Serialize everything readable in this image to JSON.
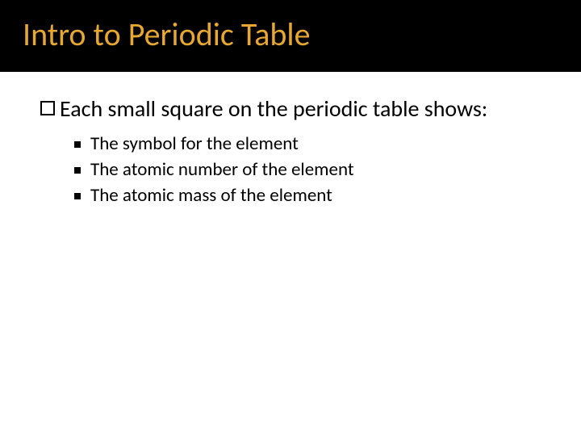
{
  "slide": {
    "title": "Intro to Periodic Table",
    "title_color": "#e7a832",
    "title_bg": "#000000",
    "main_bullet": "Each small square on the periodic table shows:",
    "sub_bullets": [
      "The symbol for the element",
      "The atomic number of the element",
      "The atomic mass of the element"
    ],
    "body_text_color": "#000000",
    "background_color": "#ffffff",
    "title_fontsize": 40,
    "main_fontsize": 28,
    "sub_fontsize": 23
  }
}
